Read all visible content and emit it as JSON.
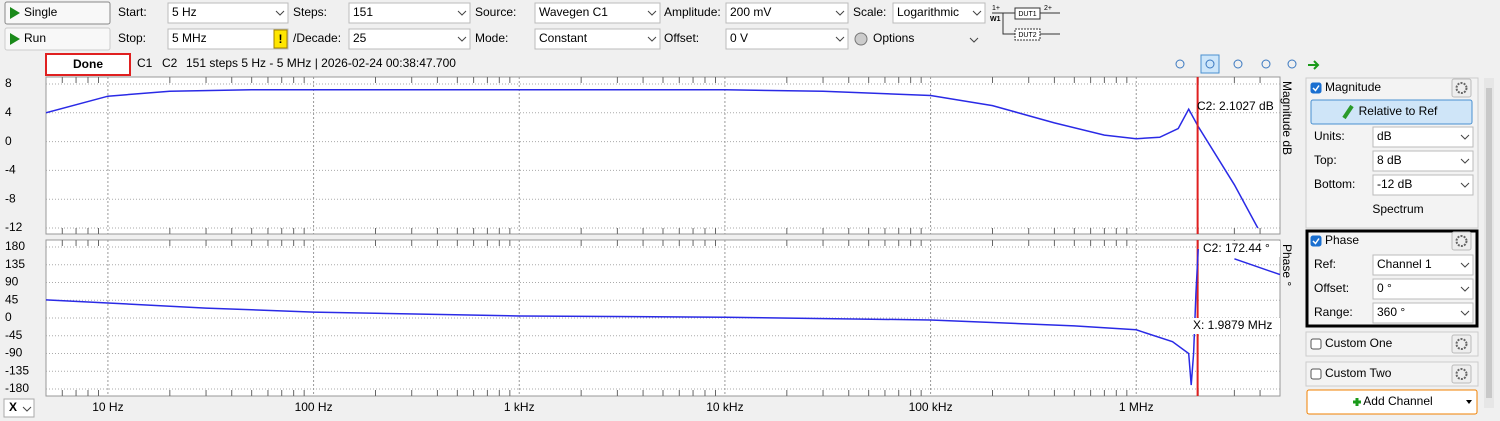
{
  "toolbar": {
    "single": "Single",
    "run": "Run",
    "start": {
      "label": "Start:",
      "value": "5 Hz"
    },
    "stop": {
      "label": "Stop:",
      "value": "5 MHz",
      "warning": "!"
    },
    "steps": {
      "label": "Steps:",
      "value": "151"
    },
    "per_decade": {
      "label": "/Decade:",
      "value": "25"
    },
    "source": {
      "label": "Source:",
      "value": "Wavegen C1"
    },
    "mode": {
      "label": "Mode:",
      "value": "Constant"
    },
    "amplitude": {
      "label": "Amplitude:",
      "value": "200 mV"
    },
    "offset": {
      "label": "Offset:",
      "value": "0 V"
    },
    "scale": {
      "label": "Scale:",
      "value": "Logarithmic"
    },
    "options": "Options",
    "diagram": {
      "in": "1+",
      "w": "W1",
      "dut1": "DUT1",
      "out": "2+",
      "dut2": "DUT2"
    }
  },
  "status": {
    "state": "Done",
    "channels": [
      "C1",
      "C2"
    ],
    "channel_colors": [
      "#f08000",
      "#2020e0"
    ],
    "info": "151 steps  5 Hz - 5 MHz | 2026-02-24 00:38:47.700"
  },
  "chart_data": [
    {
      "type": "line",
      "ylabel": "Magnitude dB",
      "xscale": "log",
      "xlim": [
        5,
        5000000
      ],
      "ylim": [
        -12,
        8
      ],
      "yticks": [
        8,
        4,
        0,
        -4,
        -8,
        -12
      ],
      "grid": true,
      "series": [
        {
          "color": "#2a2ae6",
          "x": [
            5,
            10,
            20,
            50,
            1000,
            10000,
            30000,
            100000,
            200000,
            400000,
            700000,
            1000000,
            1300000,
            1600000,
            1800000,
            2000000,
            3000000,
            3900000
          ],
          "values": [
            4,
            6.3,
            7,
            7.2,
            7.2,
            7.2,
            7.0,
            6.4,
            5.0,
            2.6,
            0.9,
            0.4,
            0.6,
            1.8,
            4.5,
            2.1,
            -6,
            -12
          ]
        }
      ],
      "annotation": "C2: 2.1027 dB"
    },
    {
      "type": "line",
      "ylabel": "Phase °",
      "xscale": "log",
      "xlim": [
        5,
        5000000
      ],
      "xticks": [
        {
          "value": 10,
          "label": "10 Hz"
        },
        {
          "value": 100,
          "label": "100 Hz"
        },
        {
          "value": 1000,
          "label": "1 kHz"
        },
        {
          "value": 10000,
          "label": "10 kHz"
        },
        {
          "value": 100000,
          "label": "100 kHz"
        },
        {
          "value": 1000000,
          "label": "1 MHz"
        }
      ],
      "ylim": [
        -180,
        180
      ],
      "yticks": [
        180,
        135,
        90,
        45,
        0,
        -45,
        -90,
        -135,
        -180
      ],
      "grid": true,
      "series": [
        {
          "color": "#2a2ae6",
          "x": [
            5,
            10,
            30,
            100,
            1000,
            10000,
            100000,
            500000,
            1000000,
            1500000,
            1800000,
            1850000,
            1900000,
            1950000,
            2000000,
            2500000,
            3000000,
            5000000
          ],
          "values": [
            46,
            38,
            25,
            15,
            5,
            2,
            -5,
            -20,
            -30,
            -60,
            -90,
            -170,
            -90,
            60,
            175,
            null,
            150,
            110
          ]
        }
      ],
      "annotation": "C2: 172.44 °",
      "cursor": {
        "value": 1987900,
        "label": "X: 1.9879 MHz",
        "color": "#e02020"
      }
    }
  ],
  "x_axis_selector": "X",
  "panel": {
    "magnitude": {
      "title": "Magnitude",
      "button": "Relative to Ref",
      "units": {
        "label": "Units:",
        "value": "dB"
      },
      "top": {
        "label": "Top:",
        "value": "8 dB"
      },
      "bottom": {
        "label": "Bottom:",
        "value": "-12 dB"
      },
      "mode": "Spectrum"
    },
    "phase": {
      "title": "Phase",
      "ref": {
        "label": "Ref:",
        "value": "Channel 1"
      },
      "offset": {
        "label": "Offset:",
        "value": "0 °"
      },
      "range": {
        "label": "Range:",
        "value": "360 °"
      }
    },
    "custom_one": "Custom One",
    "custom_two": "Custom Two",
    "add_channel": "Add Channel"
  }
}
